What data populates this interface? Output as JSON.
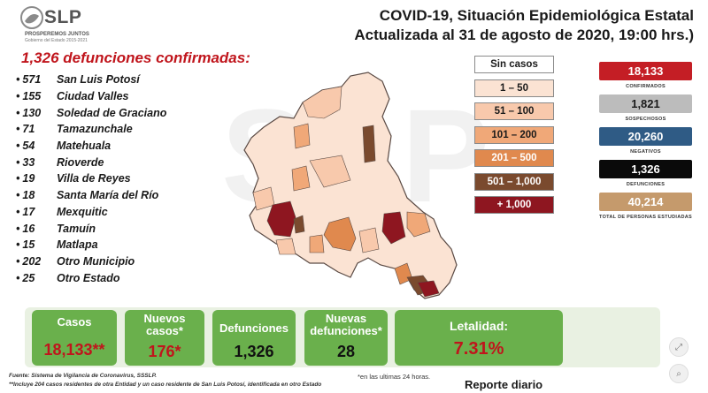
{
  "logo": {
    "text": "SLP",
    "sub1": "PROSPEREMOS JUNTOS",
    "sub2": "Gobierno del Estado 2015-2021"
  },
  "header": {
    "title_line1": "COVID-19, Situación Epidemiológica Estatal",
    "title_line2": "Actualizada al 31 de agosto de 2020, 19:00 hrs.)"
  },
  "deaths": {
    "title": "1,326 defunciones confirmadas:",
    "rows": [
      {
        "num": "571",
        "place": "San Luis Potosí"
      },
      {
        "num": "155",
        "place": "Ciudad Valles"
      },
      {
        "num": "130",
        "place": "Soledad de Graciano"
      },
      {
        "num": "71",
        "place": "Tamazunchale"
      },
      {
        "num": "54",
        "place": "Matehuala"
      },
      {
        "num": "33",
        "place": "Rioverde"
      },
      {
        "num": "19",
        "place": "Villa de Reyes"
      },
      {
        "num": "18",
        "place": "Santa María del Río"
      },
      {
        "num": "17",
        "place": "Mexquitic"
      },
      {
        "num": "16",
        "place": "Tamuín"
      },
      {
        "num": "15",
        "place": "Matlapa"
      },
      {
        "num": "202",
        "place": "Otro Municipio"
      },
      {
        "num": "25",
        "place": "Otro Estado"
      }
    ],
    "bullet": "•"
  },
  "legend": [
    {
      "label": "Sin casos",
      "bg": "#ffffff",
      "fg": "#1a1a1a"
    },
    {
      "label": "1 – 50",
      "bg": "#fbe3d3",
      "fg": "#1a1a1a"
    },
    {
      "label": "51 – 100",
      "bg": "#f8c9ac",
      "fg": "#1a1a1a"
    },
    {
      "label": "101 – 200",
      "bg": "#f0a878",
      "fg": "#1a1a1a"
    },
    {
      "label": "201 – 500",
      "bg": "#e0894e",
      "fg": "#ffffff"
    },
    {
      "label": "501 – 1,000",
      "bg": "#7a4a2e",
      "fg": "#ffffff"
    },
    {
      "label": "+ 1,000",
      "bg": "#8e1620",
      "fg": "#ffffff"
    }
  ],
  "stats": [
    {
      "value": "18,133",
      "label": "CONFIRMADOS",
      "bg": "#c41e25",
      "fg": "#ffffff"
    },
    {
      "value": "1,821",
      "label": "SOSPECHOSOS",
      "bg": "#bcbcbc",
      "fg": "#1a1a1a"
    },
    {
      "value": "20,260",
      "label": "NEGATIVOS",
      "bg": "#2f5b85",
      "fg": "#ffffff"
    },
    {
      "value": "1,326",
      "label": "DEFUNCIONES",
      "bg": "#0a0a0a",
      "fg": "#ffffff"
    },
    {
      "value": "40,214",
      "label": "TOTAL DE PERSONAS ESTUDIADAS",
      "bg": "#c59a6c",
      "fg": "#ffffff"
    }
  ],
  "cards": {
    "casos": {
      "label": "Casos",
      "value": "18,133**"
    },
    "nuevos_casos": {
      "label1": "Nuevos",
      "label2": "casos*",
      "value": "176*"
    },
    "defunciones": {
      "label": "Defunciones",
      "value": "1,326"
    },
    "nuevas_defunciones": {
      "label1": "Nuevas",
      "label2": "defunciones*",
      "value": "28"
    },
    "letalidad": {
      "label": "Letalidad:",
      "value": "7.31%"
    }
  },
  "footer": {
    "source": "Fuente: Sistema de Vigilancia de Coronavirus, SSSLP.",
    "note2": "**Incluye 204 casos residentes de otra Entidad y un caso residente de San Luis Potosí, identificada en otro Estado",
    "note1": "*en las ultimas 24 horas.",
    "report": "Reporte diario"
  },
  "watermark": "SLP",
  "colors": {
    "accent_red": "#c0151c",
    "card_green": "#6ab04c",
    "panel_green": "#e9f1e2",
    "map_base": "#fbe3d3"
  }
}
